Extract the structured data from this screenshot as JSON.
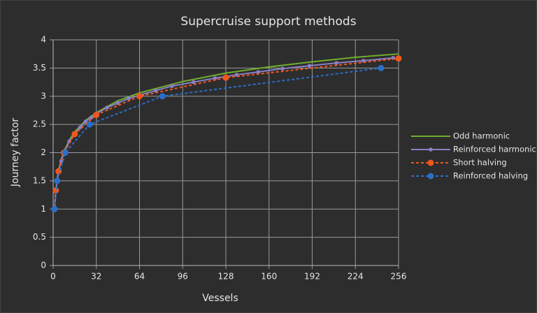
{
  "chart_data": {
    "type": "line",
    "title": "Supercruise support methods",
    "x_label": "Vessels",
    "y_label": "Journey factor",
    "xlim": [
      0,
      256
    ],
    "xticks": [
      0,
      32,
      64,
      96,
      128,
      160,
      192,
      224,
      256
    ],
    "ylim": [
      0,
      4
    ],
    "yticks": [
      0,
      0.5,
      1,
      1.5,
      2,
      2.5,
      3,
      3.5,
      4
    ],
    "grid": true,
    "legend": "right",
    "series": [
      {
        "name": "Odd harmonic",
        "color": "#6fae2f",
        "dash": "solid",
        "marker": "none",
        "x": [
          1,
          2,
          3,
          4,
          6,
          8,
          12,
          16,
          24,
          32,
          48,
          64,
          96,
          128,
          160,
          192,
          224,
          256
        ],
        "values": [
          1,
          1.33,
          1.53,
          1.68,
          1.88,
          2.02,
          2.22,
          2.37,
          2.57,
          2.71,
          2.92,
          3.06,
          3.26,
          3.41,
          3.52,
          3.61,
          3.69,
          3.75
        ]
      },
      {
        "name": "Reinforced harmonic",
        "color": "#8a80c4",
        "dash": "solid",
        "marker": "small",
        "x": [
          1,
          2,
          3,
          4,
          6,
          8,
          12,
          16,
          20,
          24,
          28,
          32,
          40,
          48,
          56,
          64,
          76,
          88,
          104,
          120,
          136,
          152,
          170,
          190,
          210,
          230,
          252
        ],
        "values": [
          1,
          1.33,
          1.5,
          1.67,
          1.85,
          2.0,
          2.2,
          2.33,
          2.45,
          2.55,
          2.62,
          2.69,
          2.8,
          2.88,
          2.96,
          3.02,
          3.1,
          3.18,
          3.25,
          3.32,
          3.38,
          3.43,
          3.49,
          3.54,
          3.59,
          3.63,
          3.68
        ]
      },
      {
        "name": "Short halving",
        "color": "#f0571e",
        "dash": "dashed",
        "marker": "large",
        "x": [
          1,
          2,
          4,
          8,
          16,
          32,
          64,
          128,
          256
        ],
        "values": [
          1,
          1.33,
          1.67,
          2,
          2.33,
          2.67,
          3,
          3.33,
          3.67
        ]
      },
      {
        "name": "Reinforced halving",
        "color": "#2a6fc9",
        "dash": "dashed",
        "marker": "large",
        "x": [
          1,
          3,
          9,
          27,
          81,
          243
        ],
        "values": [
          1,
          1.5,
          2,
          2.5,
          3,
          3.5
        ]
      }
    ]
  }
}
